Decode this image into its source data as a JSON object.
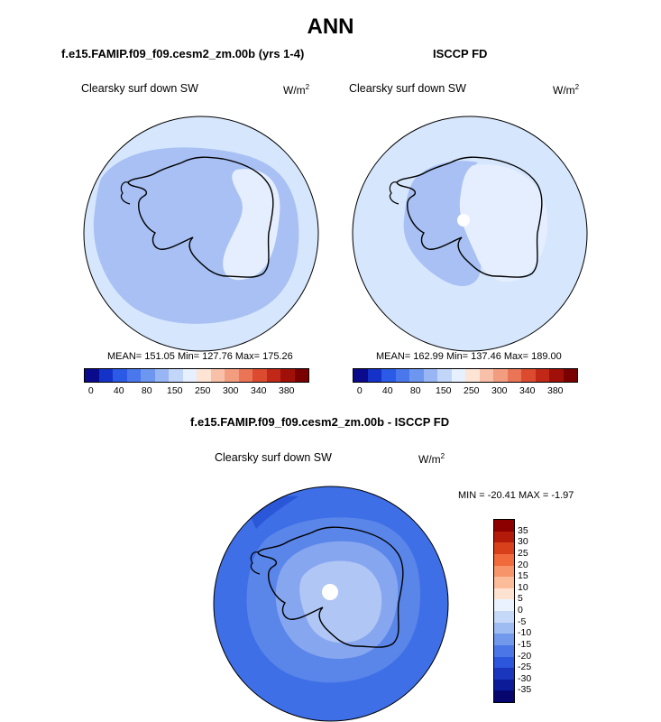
{
  "main_title": "ANN",
  "panels": [
    {
      "title": "f.e15.FAMIP.f09_f09.cesm2_zm.00b (yrs 1-4)",
      "variable": "Clearsky surf down SW",
      "units": "W/m",
      "units_exp": "2",
      "stats": "MEAN= 151.05  Min= 127.76  Max= 175.26",
      "mean": 151.05,
      "min": 127.76,
      "max": 175.26
    },
    {
      "title": "ISCCP FD",
      "variable": "Clearsky surf down SW",
      "units": "W/m",
      "units_exp": "2",
      "stats": "MEAN= 162.99  Min= 137.46  Max= 189.00",
      "mean": 162.99,
      "min": 137.46,
      "max": 189.0
    },
    {
      "title": "f.e15.FAMIP.f09_f09.cesm2_zm.00b - ISCCP FD",
      "variable": "Clearsky surf down SW",
      "units": "W/m",
      "units_exp": "2",
      "stats": "MIN = -20.41 MAX =  -1.97",
      "min": -20.41,
      "max": -1.97
    }
  ],
  "colorbar_main": {
    "tick_labels": [
      "0",
      "40",
      "80",
      "150",
      "250",
      "300",
      "340",
      "380"
    ],
    "colors": [
      "#0a0a8c",
      "#1432c8",
      "#2a5ae6",
      "#4a78ec",
      "#6c96f0",
      "#98b6f4",
      "#c2d6fa",
      "#e6f0fe",
      "#fde4d4",
      "#f8c0a8",
      "#f29c80",
      "#ea7456",
      "#dc4a30",
      "#c22818",
      "#a01008",
      "#7a0000"
    ]
  },
  "colorbar_diff": {
    "tick_labels": [
      "35",
      "30",
      "25",
      "20",
      "15",
      "10",
      "5",
      "0",
      "-5",
      "-10",
      "-15",
      "-20",
      "-25",
      "-30",
      "-35"
    ],
    "colors": [
      "#8c0000",
      "#b41a0a",
      "#d8401c",
      "#f06a3c",
      "#f8946a",
      "#fcbc9a",
      "#fde2d2",
      "#eaf2ff",
      "#c6d8f8",
      "#9ebcf2",
      "#7298ec",
      "#4a76e8",
      "#2c56dc",
      "#1a36bc",
      "#0c1c98",
      "#06066e"
    ]
  },
  "map_colors": {
    "ocean_light": "#d6e6fc",
    "ocean_mid": "#c4d6f8",
    "land_mid": "#a8c0f4",
    "land_light": "#e4eefe",
    "diff_ocean": "#3f6fe6",
    "diff_mid": "#5a86ea",
    "diff_inner": "#86a6f0",
    "diff_light": "#b0c6f4",
    "diff_dark": "#2a56d8"
  }
}
